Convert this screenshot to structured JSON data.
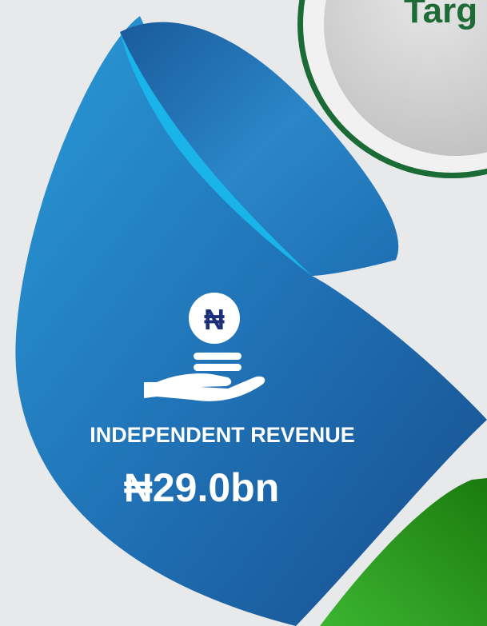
{
  "corner_label": "Targ",
  "icon_symbol": "₦",
  "card": {
    "title": "INDEPENDENT REVENUE",
    "value": "₦29.0bn"
  }
}
